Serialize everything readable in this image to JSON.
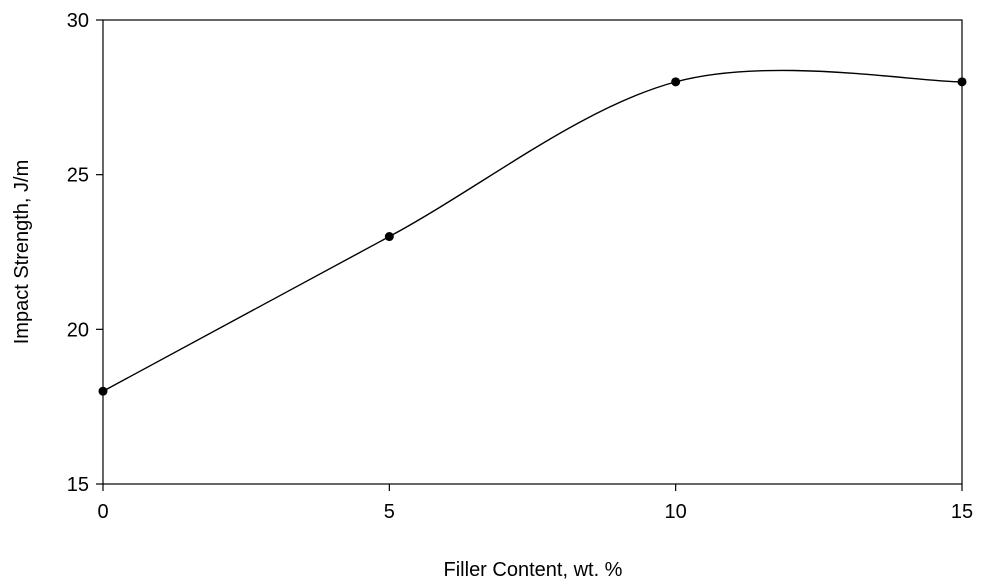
{
  "chart_data": {
    "type": "line",
    "title": "",
    "xlabel": "Filler Content, wt. %",
    "ylabel": "Impact Strength, J/m",
    "xlim": [
      0,
      15
    ],
    "ylim": [
      15,
      30
    ],
    "xticks": [
      0,
      5,
      10,
      15
    ],
    "yticks": [
      15,
      20,
      25,
      30
    ],
    "grid": false,
    "smoothed": true,
    "series": [
      {
        "x": [
          0,
          5,
          10,
          15
        ],
        "y": [
          18,
          23,
          28,
          28
        ]
      }
    ],
    "colors": {
      "line": "#000000",
      "marker": "#000000",
      "axes": "#000000"
    }
  }
}
